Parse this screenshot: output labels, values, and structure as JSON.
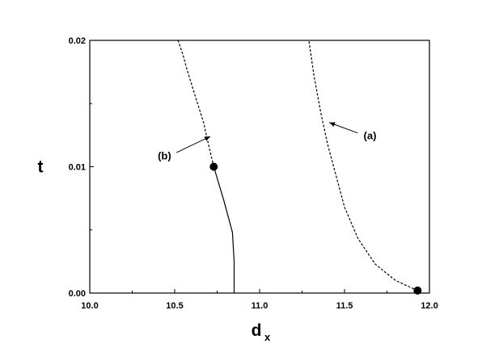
{
  "chart_data": {
    "type": "line",
    "xlabel": "d",
    "xlabel_subscript": "x",
    "ylabel": "t",
    "xlim": [
      10.0,
      12.0
    ],
    "ylim": [
      0.0,
      0.02
    ],
    "xticks": [
      "10.0",
      "10.5",
      "11.0",
      "11.5",
      "12.0"
    ],
    "yticks": [
      "0.00",
      "0.01",
      "0.02"
    ],
    "grid": false,
    "series": [
      {
        "name": "(a)",
        "style": "dashed",
        "x": [
          11.93,
          11.8,
          11.68,
          11.58,
          11.5,
          11.45,
          11.4,
          11.36,
          11.32,
          11.29
        ],
        "y": [
          0.0002,
          0.001,
          0.0023,
          0.0043,
          0.0068,
          0.0093,
          0.0118,
          0.0143,
          0.0172,
          0.02
        ],
        "marker": {
          "x": 11.93,
          "y": 0.0002
        }
      },
      {
        "name": "(b)",
        "style": "dashed",
        "x": [
          10.73,
          10.7,
          10.67,
          10.63,
          10.6,
          10.57,
          10.55,
          10.52
        ],
        "y": [
          0.01,
          0.0117,
          0.0135,
          0.0152,
          0.0165,
          0.0178,
          0.0188,
          0.02
        ],
        "marker": {
          "x": 10.73,
          "y": 0.01
        }
      },
      {
        "name": "",
        "style": "solid",
        "x": [
          10.73,
          10.79,
          10.84,
          10.85,
          10.85
        ],
        "y": [
          0.01,
          0.0073,
          0.0048,
          0.0025,
          0.0
        ],
        "marker": null
      }
    ],
    "annotations": [
      {
        "text": "(a)",
        "label_x": 11.65,
        "label_y": 0.0125,
        "arrow_to_x": 11.41,
        "arrow_to_y": 0.0135
      },
      {
        "text": "(b)",
        "label_x": 10.44,
        "label_y": 0.0109,
        "arrow_to_x": 10.71,
        "arrow_to_y": 0.0124
      }
    ]
  }
}
